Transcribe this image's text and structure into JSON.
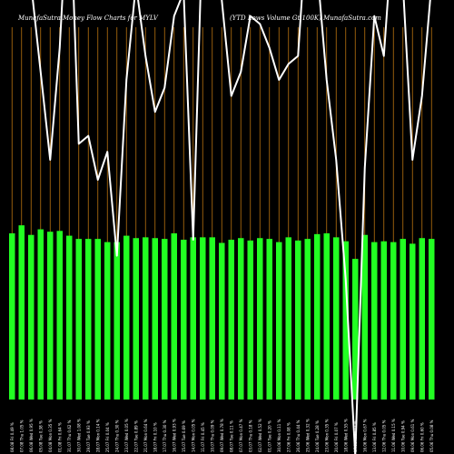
{
  "chart_data": {
    "type": "bar",
    "title_left": "MunafaSutra  Money Flow  Charts for MYLV",
    "title_right": "(YTD Lows Volume    Gt 100K) MunafaSutra.com",
    "background": "#000000",
    "bar_color": "#22ff22",
    "grid_color": "#b8730f",
    "line_color": "#ffffff",
    "grid": true,
    "ylim": [
      0,
      500
    ],
    "categories": [
      "08.08 Fri 0.49 %",
      "07.08 Thu 1.05 %",
      "06.08 Wed 0.95 %",
      "05.08 Tue 0.38 %",
      "04.08 Mon 0.35 %",
      "01.08 Fri 0.64 %",
      "31.07 Thu 0.62 %",
      "30.07 Wed 1.08 %",
      "29.07 Tue 0.93 %",
      "28.07 Mon 0.14 %",
      "25.07 Fri 0.04 %",
      "24.07 Thu 0.30 %",
      "23.07 Wed 0.05 %",
      "22.07 Tue 0.89 %",
      "21.07 Mon 0.64 %",
      "18.07 Fri 0.10 %",
      "17.07 Thu 0.30 %",
      "16.07 Wed 0.93 %",
      "15.07 Tue 0.69 %",
      "14.07 Mon 0.05 %",
      "11.07 Fri 0.45 %",
      "10.07 Thu 0.09 %",
      "09.07 Wed 0.78 %",
      "08.07 Tue 0.11 %",
      "07.07 Mon 0.47 %",
      "03.07 Thu 0.18 %",
      "02.07 Wed 0.52 %",
      "01.07 Tue 0.20 %",
      "30.06 Mon 0.11 %",
      "27.06 Fri 0.08 %",
      "26.06 Thu 0.44 %",
      "25.06 Wed 0.32 %",
      "24.06 Tue 0.28 %",
      "23.06 Mon 0.35 %",
      "20.06 Fri 0.07 %",
      "18.06 Wed 0.55 %",
      "17.06 Tue 0.11 %",
      "16.06 Mon 0.67 %",
      "13.06 Fri 0.85 %",
      "12.06 Thu 0.05 %",
      "11.06 Wed 0.15 %",
      "10.06 Tue 0.94 %",
      "09.06 Mon 0.61 %",
      "06.06 Fri 0.60 %",
      "05.06 Thu 0.08 %"
    ],
    "values": [
      208,
      218,
      206,
      213,
      210,
      211,
      205,
      201,
      201,
      201,
      197,
      197,
      205,
      202,
      203,
      202,
      201,
      208,
      200,
      203,
      203,
      203,
      196,
      200,
      202,
      199,
      202,
      201,
      197,
      203,
      199,
      201,
      207,
      208,
      203,
      198,
      176,
      206,
      197,
      198,
      197,
      201,
      195,
      202,
      201
    ],
    "line_values": [
      650,
      600,
      520,
      410,
      300,
      440,
      660,
      320,
      330,
      275,
      310,
      180,
      400,
      520,
      430,
      360,
      390,
      480,
      510,
      200,
      600,
      640,
      500,
      380,
      410,
      480,
      470,
      440,
      400,
      420,
      430,
      610,
      540,
      400,
      300,
      150,
      -70,
      290,
      480,
      430,
      600,
      520,
      300,
      380,
      520
    ]
  }
}
